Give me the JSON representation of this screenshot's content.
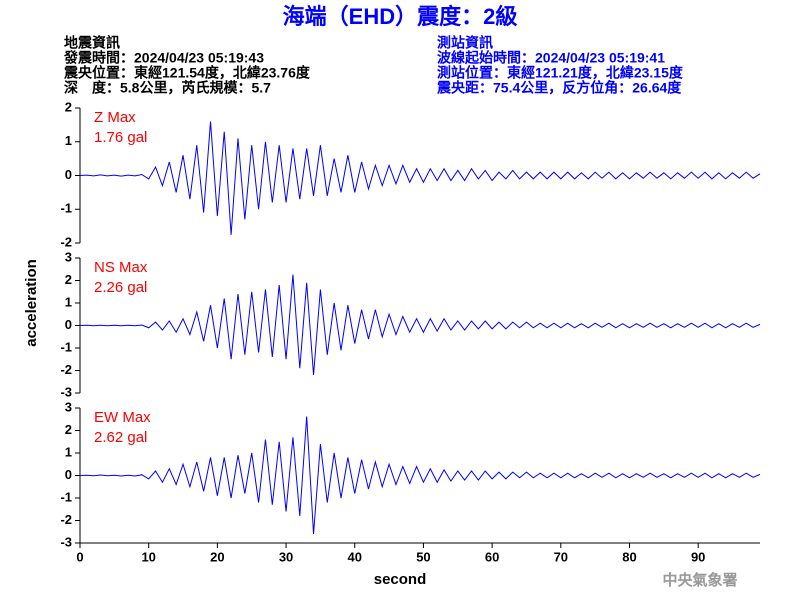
{
  "title": "海端（EHD）震度：2級",
  "info_left": [
    "地震資訊",
    "發震時間：2024/04/23 05:19:43",
    "震央位置：東經121.54度，北緯23.76度",
    "深　度：5.8公里，芮氏規模：5.7"
  ],
  "info_right": [
    "測站資訊",
    "波線起始時間：2024/04/23 05:19:41",
    "測站位置：東經121.21度，北緯23.15度",
    "震央距：75.4公里，反方位角：26.64度"
  ],
  "ylabel": "acceleration",
  "footer": "中央氣象署",
  "chart_data": [
    {
      "type": "line",
      "label": "Z Max",
      "max_label": "1.76 gal",
      "label_color": "#ff0000",
      "xlim": [
        0,
        99
      ],
      "ylim": [
        -2,
        2
      ],
      "yticks": [
        -2,
        -1,
        0,
        1,
        2
      ],
      "x": [
        0,
        1,
        2,
        3,
        4,
        5,
        6,
        7,
        8,
        9,
        10,
        11,
        12,
        13,
        14,
        15,
        16,
        17,
        18,
        19,
        20,
        21,
        22,
        23,
        24,
        25,
        26,
        27,
        28,
        29,
        30,
        31,
        32,
        33,
        34,
        35,
        36,
        37,
        38,
        39,
        40,
        41,
        42,
        43,
        44,
        45,
        46,
        47,
        48,
        49,
        50,
        51,
        52,
        53,
        54,
        55,
        56,
        57,
        58,
        59,
        60,
        61,
        62,
        63,
        64,
        65,
        66,
        67,
        68,
        69,
        70,
        71,
        72,
        73,
        74,
        75,
        76,
        77,
        78,
        79,
        80,
        81,
        82,
        83,
        84,
        85,
        86,
        87,
        88,
        89,
        90,
        91,
        92,
        93,
        94,
        95,
        96,
        97,
        98,
        99
      ],
      "series": [
        {
          "name": "Z",
          "color": "#0000ff",
          "values": [
            0,
            0.01,
            -0.01,
            0.02,
            -0.01,
            0.01,
            -0.02,
            0.01,
            -0.01,
            0.03,
            -0.1,
            0.25,
            -0.3,
            0.4,
            -0.5,
            0.6,
            -0.7,
            0.9,
            -1.1,
            1.6,
            -1.2,
            1.3,
            -1.76,
            1.1,
            -1.3,
            0.9,
            -1.0,
            1.0,
            -0.8,
            0.9,
            -0.8,
            0.8,
            -0.7,
            0.8,
            -0.6,
            0.9,
            -0.6,
            0.5,
            -0.5,
            0.6,
            -0.5,
            0.4,
            -0.4,
            0.3,
            -0.3,
            0.3,
            -0.25,
            0.3,
            -0.2,
            0.2,
            -0.2,
            0.2,
            -0.15,
            0.2,
            -0.15,
            0.15,
            -0.15,
            0.2,
            -0.1,
            0.15,
            -0.15,
            0.1,
            -0.1,
            0.15,
            -0.1,
            0.1,
            -0.1,
            0.1,
            -0.1,
            0.1,
            -0.1,
            0.1,
            -0.1,
            0.08,
            -0.1,
            0.1,
            -0.08,
            0.1,
            -0.1,
            0.08,
            -0.1,
            0.08,
            -0.08,
            0.1,
            -0.08,
            0.08,
            -0.1,
            0.08,
            -0.08,
            0.1,
            -0.08,
            0.1,
            -0.1,
            0.08,
            -0.1,
            0.08,
            -0.08,
            0.1,
            -0.08,
            0.05
          ]
        }
      ]
    },
    {
      "type": "line",
      "label": "NS Max",
      "max_label": "2.26 gal",
      "label_color": "#ff0000",
      "xlim": [
        0,
        99
      ],
      "ylim": [
        -3,
        3
      ],
      "yticks": [
        -3,
        -2,
        -1,
        0,
        1,
        2,
        3
      ],
      "x": [
        0,
        1,
        2,
        3,
        4,
        5,
        6,
        7,
        8,
        9,
        10,
        11,
        12,
        13,
        14,
        15,
        16,
        17,
        18,
        19,
        20,
        21,
        22,
        23,
        24,
        25,
        26,
        27,
        28,
        29,
        30,
        31,
        32,
        33,
        34,
        35,
        36,
        37,
        38,
        39,
        40,
        41,
        42,
        43,
        44,
        45,
        46,
        47,
        48,
        49,
        50,
        51,
        52,
        53,
        54,
        55,
        56,
        57,
        58,
        59,
        60,
        61,
        62,
        63,
        64,
        65,
        66,
        67,
        68,
        69,
        70,
        71,
        72,
        73,
        74,
        75,
        76,
        77,
        78,
        79,
        80,
        81,
        82,
        83,
        84,
        85,
        86,
        87,
        88,
        89,
        90,
        91,
        92,
        93,
        94,
        95,
        96,
        97,
        98,
        99
      ],
      "series": [
        {
          "name": "NS",
          "color": "#0000ff",
          "values": [
            0,
            0.01,
            -0.01,
            0.01,
            -0.01,
            0.01,
            -0.01,
            0.01,
            -0.01,
            0.02,
            -0.1,
            0.15,
            -0.2,
            0.2,
            -0.3,
            0.3,
            -0.4,
            0.6,
            -0.7,
            0.9,
            -1.0,
            1.2,
            -1.5,
            1.4,
            -1.3,
            1.5,
            -1.2,
            1.6,
            -1.4,
            1.8,
            -1.5,
            2.26,
            -1.9,
            1.9,
            -2.2,
            1.6,
            -1.3,
            1.0,
            -1.1,
            0.9,
            -0.8,
            0.7,
            -0.6,
            0.7,
            -0.5,
            0.5,
            -0.4,
            0.4,
            -0.3,
            0.3,
            -0.3,
            0.3,
            -0.25,
            0.3,
            -0.2,
            0.2,
            -0.2,
            0.2,
            -0.15,
            0.2,
            -0.15,
            0.15,
            -0.15,
            0.15,
            -0.1,
            0.15,
            -0.1,
            0.1,
            -0.1,
            0.1,
            -0.1,
            0.1,
            -0.1,
            0.08,
            -0.1,
            0.1,
            -0.08,
            0.1,
            -0.1,
            0.08,
            -0.1,
            0.08,
            -0.08,
            0.1,
            -0.08,
            0.08,
            -0.1,
            0.08,
            -0.08,
            0.1,
            -0.08,
            0.1,
            -0.1,
            0.08,
            -0.1,
            0.08,
            -0.08,
            0.1,
            -0.08,
            0.05
          ]
        }
      ]
    },
    {
      "type": "line",
      "label": "EW Max",
      "max_label": "2.62 gal",
      "label_color": "#ff0000",
      "xlim": [
        0,
        99
      ],
      "ylim": [
        -3,
        3
      ],
      "yticks": [
        -3,
        -2,
        -1,
        0,
        1,
        2,
        3
      ],
      "xticks": [
        0,
        10,
        20,
        30,
        40,
        50,
        60,
        70,
        80,
        90
      ],
      "xlabel": "second",
      "x": [
        0,
        1,
        2,
        3,
        4,
        5,
        6,
        7,
        8,
        9,
        10,
        11,
        12,
        13,
        14,
        15,
        16,
        17,
        18,
        19,
        20,
        21,
        22,
        23,
        24,
        25,
        26,
        27,
        28,
        29,
        30,
        31,
        32,
        33,
        34,
        35,
        36,
        37,
        38,
        39,
        40,
        41,
        42,
        43,
        44,
        45,
        46,
        47,
        48,
        49,
        50,
        51,
        52,
        53,
        54,
        55,
        56,
        57,
        58,
        59,
        60,
        61,
        62,
        63,
        64,
        65,
        66,
        67,
        68,
        69,
        70,
        71,
        72,
        73,
        74,
        75,
        76,
        77,
        78,
        79,
        80,
        81,
        82,
        83,
        84,
        85,
        86,
        87,
        88,
        89,
        90,
        91,
        92,
        93,
        94,
        95,
        96,
        97,
        98,
        99
      ],
      "series": [
        {
          "name": "EW",
          "color": "#0000ff",
          "values": [
            0,
            0.01,
            -0.01,
            0.02,
            -0.01,
            0.01,
            -0.02,
            0.01,
            -0.02,
            0.03,
            -0.15,
            0.2,
            -0.3,
            0.3,
            -0.4,
            0.5,
            -0.5,
            0.6,
            -0.7,
            0.8,
            -0.9,
            0.8,
            -1.0,
            0.9,
            -0.8,
            1.0,
            -1.2,
            1.6,
            -1.3,
            1.5,
            -1.6,
            1.7,
            -1.8,
            2.62,
            -2.6,
            1.4,
            -1.2,
            1.0,
            -1.0,
            0.8,
            -0.8,
            0.7,
            -0.6,
            0.6,
            -0.5,
            0.5,
            -0.4,
            0.4,
            -0.35,
            0.4,
            -0.3,
            0.3,
            -0.3,
            0.25,
            -0.25,
            0.2,
            -0.2,
            0.2,
            -0.2,
            0.2,
            -0.15,
            0.15,
            -0.15,
            0.15,
            -0.1,
            0.15,
            -0.1,
            0.1,
            -0.1,
            0.1,
            -0.1,
            0.1,
            -0.1,
            0.08,
            -0.1,
            0.1,
            -0.08,
            0.1,
            -0.1,
            0.08,
            -0.1,
            0.08,
            -0.08,
            0.1,
            -0.08,
            0.08,
            -0.1,
            0.08,
            -0.08,
            0.1,
            -0.08,
            0.1,
            -0.1,
            0.08,
            -0.1,
            0.08,
            -0.08,
            0.1,
            -0.08,
            0.05
          ]
        }
      ]
    }
  ]
}
